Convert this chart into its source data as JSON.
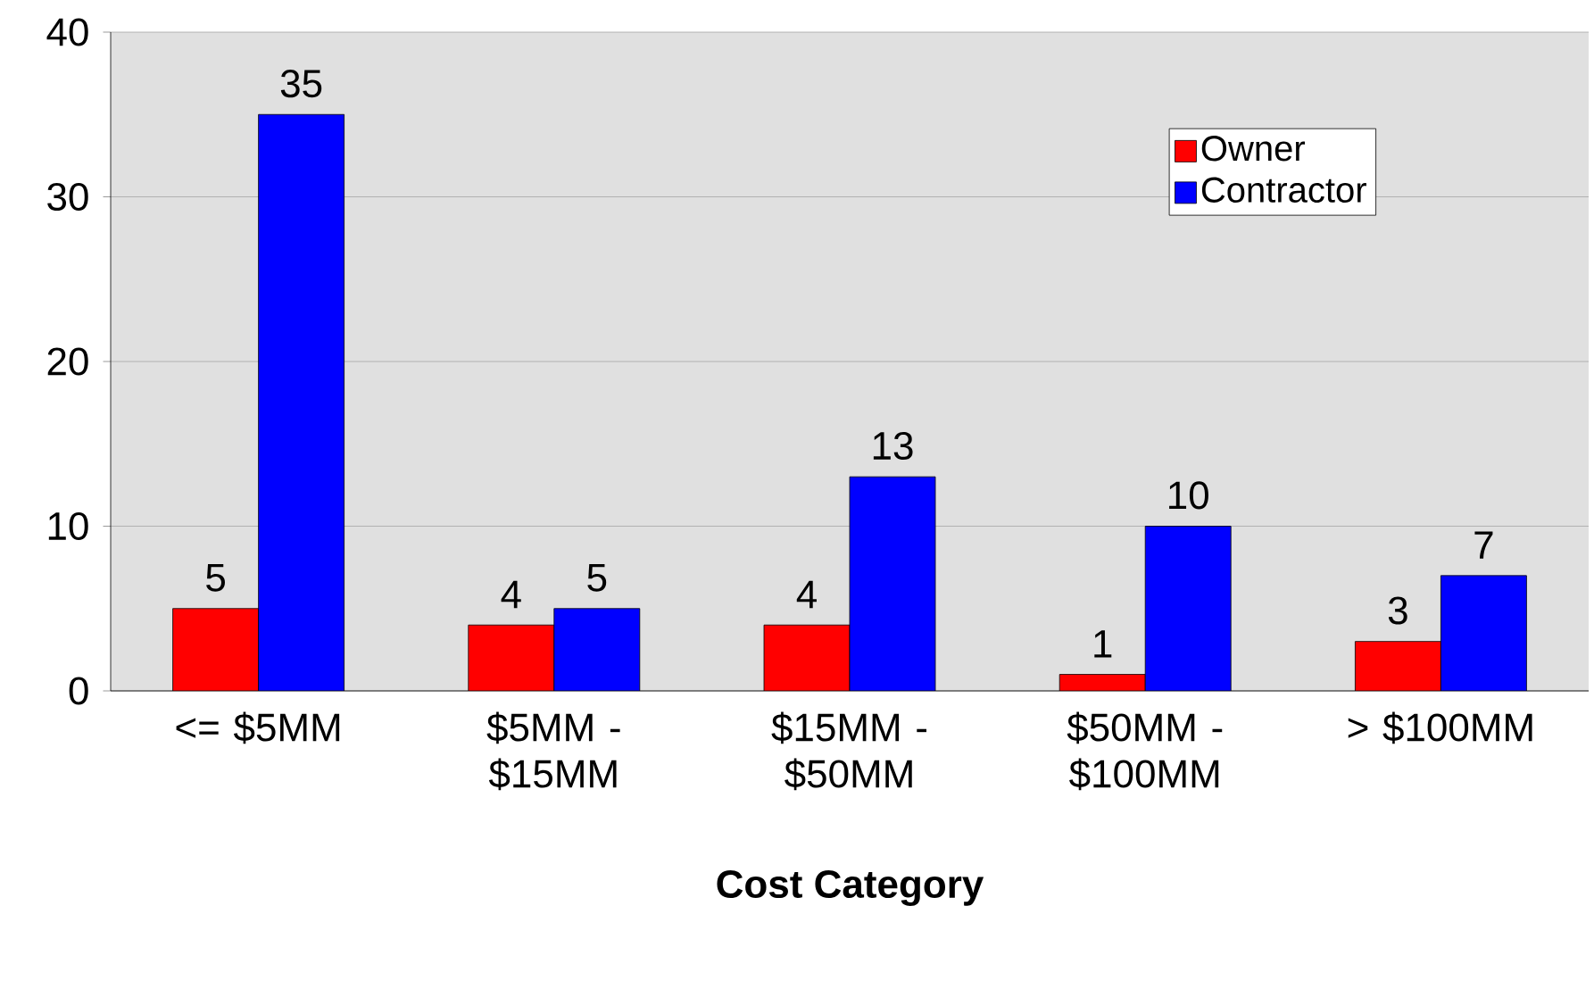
{
  "chart_data": {
    "type": "bar",
    "xlabel": "Cost Category",
    "categories": [
      "<= $5MM",
      "$5MM - $15MM",
      "$15MM - $50MM",
      "$50MM - $100MM",
      "> $100MM"
    ],
    "series": [
      {
        "name": "Owner",
        "color": "#ff0000",
        "values": [
          5,
          4,
          4,
          1,
          3
        ]
      },
      {
        "name": "Contractor",
        "color": "#0000ff",
        "values": [
          35,
          5,
          13,
          10,
          7
        ]
      }
    ],
    "ylim": [
      0,
      40
    ],
    "yticks": [
      0,
      10,
      20,
      30,
      40
    ],
    "grid": "y",
    "legend": "top right",
    "data_labels": true
  }
}
